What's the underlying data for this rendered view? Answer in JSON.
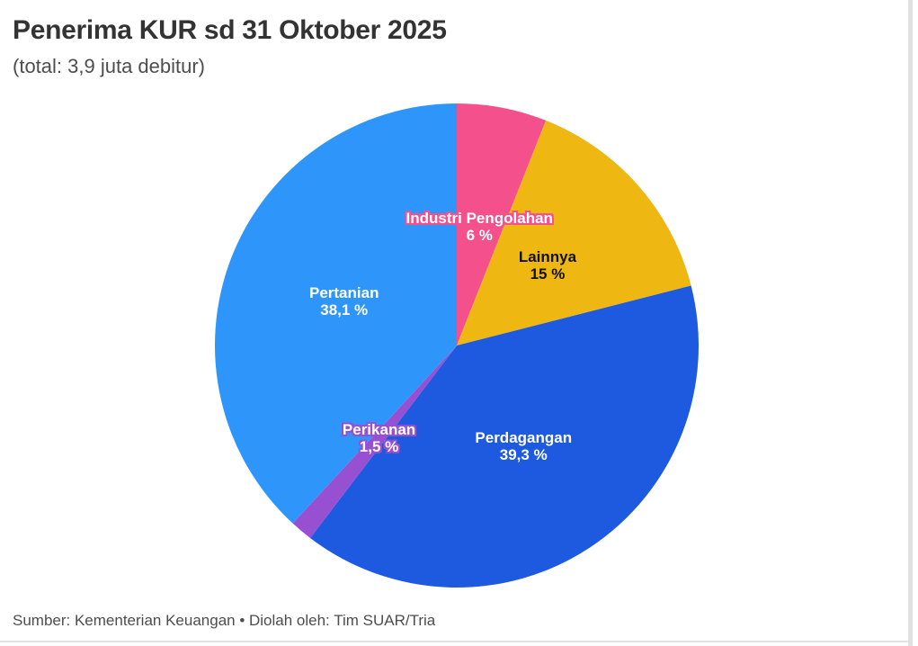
{
  "header": {
    "title": "Penerima KUR sd 31 Oktober 2025",
    "subtitle": "(total: 3,9 juta debitur)"
  },
  "chart_data": {
    "type": "pie",
    "title": "Penerima KUR sd 31 Oktober 2025",
    "subtitle": "(total: 3,9 juta debitur)",
    "total_value": "3,9 juta debitur",
    "start_angle_deg": 0,
    "direction": "clockwise",
    "legend": "none",
    "label_placement": "inside",
    "slices": [
      {
        "label": "Industri Pengolahan",
        "value": 6,
        "pct_label": "6 %",
        "color": "#f3508c",
        "text_color": "#ffffff",
        "outline_color": "#f3508c"
      },
      {
        "label": "Lainnya",
        "value": 15,
        "pct_label": "15 %",
        "color": "#efb711",
        "text_color": "#111111",
        "outline_color": null
      },
      {
        "label": "Perdagangan",
        "value": 39.3,
        "pct_label": "39,3 %",
        "color": "#1e5ae0",
        "text_color": "#ffffff",
        "outline_color": null
      },
      {
        "label": "Perikanan",
        "value": 1.5,
        "pct_label": "1,5 %",
        "color": "#9850d2",
        "text_color": "#ffffff",
        "outline_color": "#9850d2"
      },
      {
        "label": "Pertanian",
        "value": 38.1,
        "pct_label": "38,1 %",
        "color": "#2e96fa",
        "text_color": "#ffffff",
        "outline_color": null
      }
    ]
  },
  "footer": {
    "source": "Sumber: Kementerian Keuangan • Diolah oleh: Tim SUAR/Tria"
  }
}
